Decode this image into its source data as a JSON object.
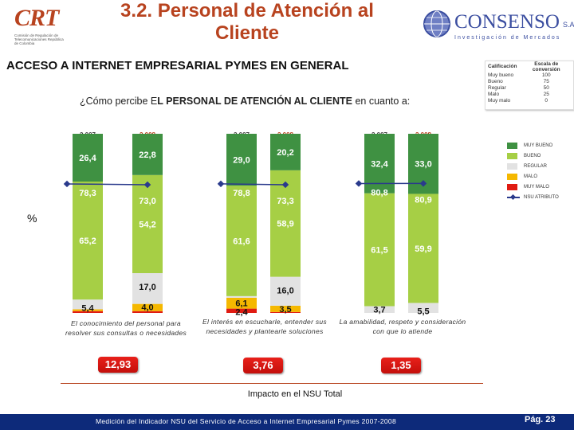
{
  "header": {
    "title_line1": "3.2. Personal de Atención al",
    "title_line2": "Cliente",
    "crt_logo": "CRT",
    "crt_tagline": "Comisión de Regulación de Telecomunicaciones República de Colombia",
    "consenso_name": "CONSENSO",
    "consenso_sa": "S.A",
    "consenso_tagline": "Investigación de Mercados"
  },
  "subtitle": "ACCESO A INTERNET EMPRESARIAL PYMES EN GENERAL",
  "question": {
    "pre": "¿Cómo percibe E",
    "bold": "L PERSONAL DE ATENCIÓN AL CLIENTE",
    "post": " en cuanto a:"
  },
  "calificacion": {
    "col1": "Calificación",
    "col2": "Escala de conversión",
    "rows": [
      {
        "label": "Muy bueno",
        "value": "100"
      },
      {
        "label": "Bueno",
        "value": "75"
      },
      {
        "label": "Regular",
        "value": "50"
      },
      {
        "label": "Malo",
        "value": "25"
      },
      {
        "label": "Muy malo",
        "value": "0"
      }
    ]
  },
  "legend": [
    {
      "label": "MUY BUENO",
      "color": "#3f9142"
    },
    {
      "label": "BUENO",
      "color": "#a6cf45"
    },
    {
      "label": "REGULAR",
      "color": "#e2e2e2"
    },
    {
      "label": "MALO",
      "color": "#f5b800"
    },
    {
      "label": "MUY MALO",
      "color": "#e01b12"
    },
    {
      "label": "NSU ATRIBUTO",
      "color": "#2a3a8c"
    }
  ],
  "chart_data": {
    "type": "bar",
    "stacked": true,
    "ylabel": "%",
    "groups": [
      {
        "category": "El conocimiento del personal para resolver sus consultas o necesidades",
        "impact": "12,93",
        "bars": [
          {
            "year": "2.007",
            "muy_malo": 1.0,
            "malo": 1.0,
            "regular": 5.4,
            "bueno": 65.2,
            "muy_bueno": 26.4,
            "label_regular": "5,4",
            "label_bueno": "65,2",
            "label_muy_bueno": "26,4",
            "nsu": 78.3,
            "nsu_label": "78,3"
          },
          {
            "year": "2.008",
            "muy_malo": 1.0,
            "malo": 4.0,
            "regular": 17.0,
            "bueno": 54.2,
            "muy_bueno": 22.8,
            "label_malo": "4,0",
            "label_regular": "17,0",
            "label_bueno": "54,2",
            "label_muy_bueno": "22,8",
            "nsu": 73.0,
            "nsu_label": "73,0"
          }
        ]
      },
      {
        "category": "El interés en escucharle, entender sus necesidades y plantearle soluciones",
        "impact": "3,76",
        "bars": [
          {
            "year": "2.007",
            "muy_malo": 2.4,
            "malo": 6.1,
            "regular": 0.9,
            "bueno": 61.6,
            "muy_bueno": 29.0,
            "label_muy_malo": "2,4",
            "label_malo": "6,1",
            "label_bueno": "61,6",
            "label_muy_bueno": "29,0",
            "nsu": 78.8,
            "nsu_label": "78,8"
          },
          {
            "year": "2.008",
            "muy_malo": 0.5,
            "malo": 3.5,
            "regular": 16.0,
            "bueno": 58.9,
            "muy_bueno": 20.2,
            "label_malo": "3,5",
            "label_regular": "16,0",
            "label_bueno": "58,9",
            "label_muy_bueno": "20,2",
            "nsu": 73.3,
            "nsu_label": "73,3"
          }
        ]
      },
      {
        "category": "La amabilidad, respeto y consideración con que lo atiende",
        "impact": "1,35",
        "bars": [
          {
            "year": "2.007",
            "muy_malo": 0.0,
            "malo": 0.0,
            "regular": 3.7,
            "bueno": 61.5,
            "muy_bueno": 32.4,
            "label_regular": "3,7",
            "label_bueno": "61,5",
            "label_muy_bueno": "32,4",
            "nsu": 80.8,
            "nsu_label": "80,8"
          },
          {
            "year": "2.008",
            "muy_malo": 0.0,
            "malo": 0.0,
            "regular": 5.5,
            "bueno": 59.9,
            "muy_bueno": 33.0,
            "label_regular": "5,5",
            "label_bueno": "59,9",
            "label_muy_bueno": "33,0",
            "nsu": 80.9,
            "nsu_label": "80,9"
          }
        ]
      }
    ]
  },
  "impact_label": "Impacto en el NSU Total",
  "footer": {
    "text": "Medición del Indicador NSU del Servicio de Acceso a Internet Empresarial Pymes 2007-2008",
    "page": "Pág. 23"
  }
}
